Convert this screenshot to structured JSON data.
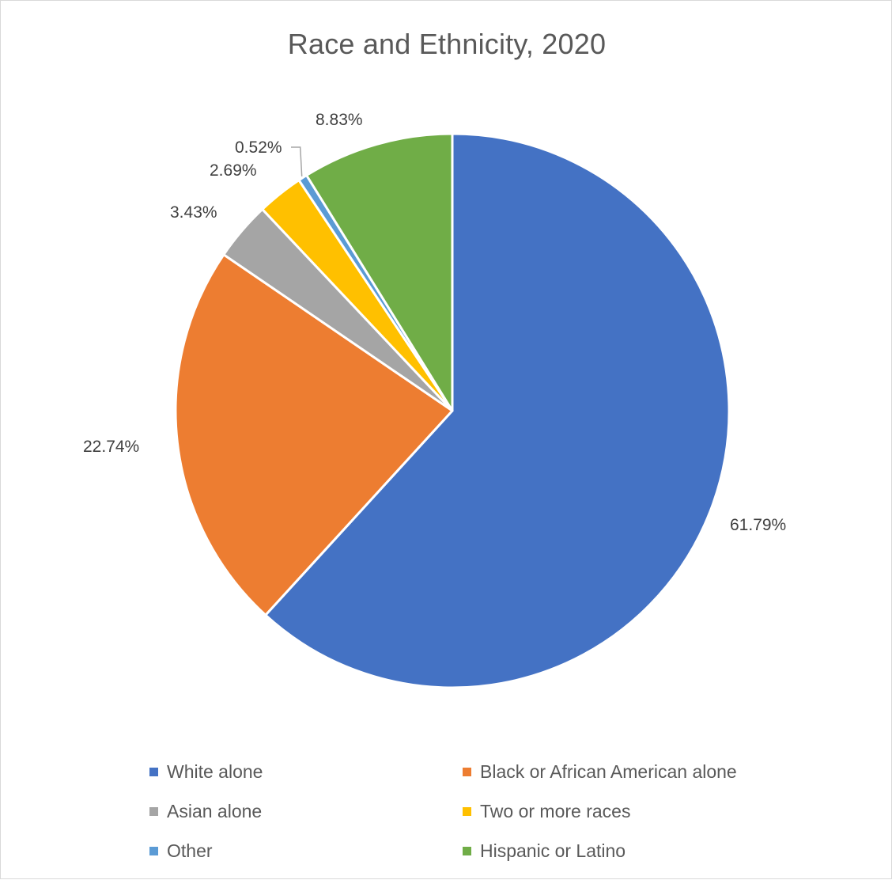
{
  "chart_data": {
    "type": "pie",
    "title": "Race and Ethnicity, 2020",
    "start": "12 o'clock",
    "direction": "clockwise",
    "legend_position": "bottom",
    "slices": [
      {
        "name": "White alone",
        "value": 61.79,
        "label": "61.79%",
        "color": "#4472C4"
      },
      {
        "name": "Black or African American alone",
        "value": 22.74,
        "label": "22.74%",
        "color": "#ED7D31"
      },
      {
        "name": "Asian alone",
        "value": 3.43,
        "label": "3.43%",
        "color": "#A5A5A5"
      },
      {
        "name": "Two or more races",
        "value": 2.69,
        "label": "2.69%",
        "color": "#FFC000"
      },
      {
        "name": "Other",
        "value": 0.52,
        "label": "0.52%",
        "color": "#5B9BD5"
      },
      {
        "name": "Hispanic or Latino",
        "value": 8.83,
        "label": "8.83%",
        "color": "#70AD47"
      }
    ],
    "legend": [
      {
        "name": "White alone",
        "color": "#4472C4"
      },
      {
        "name": "Black or African American alone",
        "color": "#ED7D31"
      },
      {
        "name": "Asian alone",
        "color": "#A5A5A5"
      },
      {
        "name": "Two or more races",
        "color": "#FFC000"
      },
      {
        "name": "Other",
        "color": "#5B9BD5"
      },
      {
        "name": "Hispanic or Latino",
        "color": "#70AD47"
      }
    ]
  }
}
